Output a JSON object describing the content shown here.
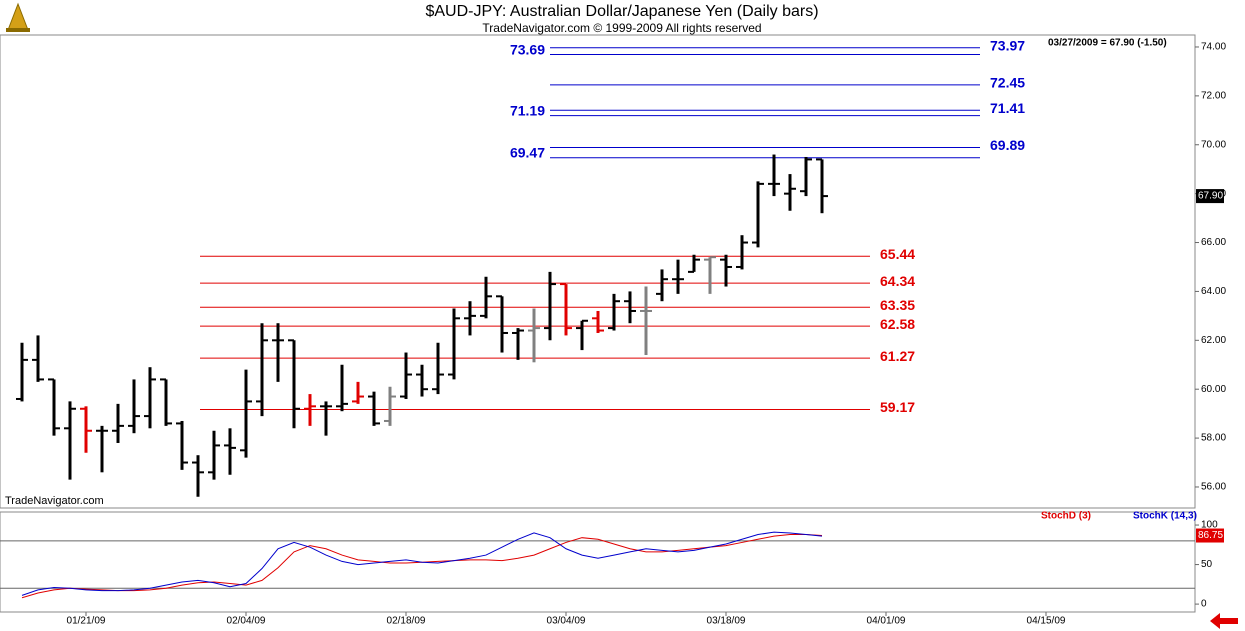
{
  "header": {
    "title": "$AUD-JPY:  Australian Dollar/Japanese Yen  (Daily bars)",
    "subtitle": "TradeNavigator.com © 1999-2009 All rights reserved",
    "info": "03/27/2009 = 67.90 (-1.50)",
    "watermark": "TradeNavigator.com"
  },
  "chart_data": [
    {
      "type": "ohlc",
      "open": [
        59.6,
        61.2,
        60.4,
        58.4,
        59.2,
        58.3,
        58.3,
        58.5,
        58.9,
        60.4,
        58.6,
        57.0,
        56.6,
        57.7,
        57.5,
        59.5,
        62.0,
        62.0,
        59.2,
        59.3,
        59.3,
        59.5,
        59.7,
        58.7,
        59.7,
        60.6,
        60.0,
        60.6,
        62.9,
        63.0,
        63.8,
        62.3,
        62.4,
        62.5,
        64.3,
        62.5,
        62.9,
        62.5,
        63.6,
        63.2,
        63.9,
        64.5,
        64.8,
        65.3,
        65.3,
        65.0,
        66.0,
        68.4,
        68.0,
        68.1,
        69.4
      ],
      "high": [
        61.9,
        62.2,
        60.4,
        59.5,
        59.3,
        58.5,
        59.4,
        60.4,
        60.9,
        60.4,
        58.7,
        57.3,
        58.3,
        58.4,
        60.8,
        62.7,
        62.7,
        62.0,
        59.8,
        59.5,
        61.0,
        60.3,
        59.9,
        60.1,
        61.5,
        61.0,
        61.9,
        63.3,
        63.6,
        64.6,
        63.8,
        62.5,
        63.3,
        64.8,
        64.3,
        62.8,
        63.2,
        63.9,
        64.0,
        64.2,
        64.9,
        65.3,
        65.5,
        65.4,
        65.5,
        66.3,
        68.5,
        69.6,
        68.8,
        69.5,
        69.4
      ],
      "low": [
        59.5,
        60.3,
        58.1,
        56.3,
        57.4,
        56.6,
        57.8,
        58.2,
        58.4,
        58.5,
        56.7,
        55.6,
        56.3,
        56.5,
        57.2,
        58.9,
        60.3,
        58.4,
        58.5,
        58.1,
        59.1,
        59.4,
        58.5,
        58.5,
        59.6,
        59.7,
        59.8,
        60.4,
        62.2,
        62.9,
        61.5,
        61.2,
        61.1,
        62.0,
        62.2,
        61.6,
        62.3,
        62.4,
        62.7,
        61.4,
        63.6,
        63.9,
        64.8,
        63.9,
        64.2,
        64.9,
        65.8,
        67.9,
        67.3,
        67.9,
        67.2
      ],
      "close": [
        61.2,
        60.4,
        58.4,
        59.2,
        58.3,
        58.3,
        58.5,
        58.9,
        60.4,
        58.6,
        57.0,
        56.6,
        57.7,
        57.6,
        59.5,
        62.0,
        62.0,
        59.2,
        59.3,
        59.3,
        59.4,
        59.7,
        58.6,
        59.7,
        60.6,
        60.0,
        60.6,
        62.9,
        63.0,
        63.8,
        62.3,
        62.4,
        62.5,
        64.3,
        62.5,
        62.8,
        62.4,
        63.6,
        63.2,
        63.2,
        64.5,
        64.5,
        65.3,
        65.4,
        65.0,
        66.0,
        68.4,
        68.4,
        68.2,
        69.4,
        67.9
      ],
      "colors": [
        "#000000",
        "#000000",
        "#000000",
        "#000000",
        "#e00000",
        "#000000",
        "#000000",
        "#000000",
        "#000000",
        "#000000",
        "#000000",
        "#000000",
        "#000000",
        "#000000",
        "#000000",
        "#000000",
        "#000000",
        "#000000",
        "#e00000",
        "#000000",
        "#000000",
        "#e00000",
        "#000000",
        "#808080",
        "#000000",
        "#000000",
        "#000000",
        "#000000",
        "#000000",
        "#000000",
        "#000000",
        "#000000",
        "#808080",
        "#000000",
        "#e00000",
        "#000000",
        "#e00000",
        "#000000",
        "#000000",
        "#808080",
        "#000000",
        "#000000",
        "#000000",
        "#808080",
        "#000000",
        "#000000",
        "#000000",
        "#000000",
        "#000000",
        "#000000",
        "#000000"
      ],
      "ylim": [
        55.14,
        74.49
      ],
      "yticks": [
        {
          "value": 56,
          "label": "56.00"
        },
        {
          "value": 58,
          "label": "58.00"
        },
        {
          "value": 60,
          "label": "60.00"
        },
        {
          "value": 62,
          "label": "62.00"
        },
        {
          "value": 64,
          "label": "64.00"
        },
        {
          "value": 66,
          "label": "66.00"
        },
        {
          "value": 68,
          "label": "68.00"
        },
        {
          "value": 70,
          "label": "70.00"
        },
        {
          "value": 72,
          "label": "72.00"
        },
        {
          "value": 74,
          "label": "74.00"
        }
      ],
      "last_price": {
        "value": 67.9,
        "label": "67.90"
      },
      "levels": [
        {
          "value": 73.97,
          "color": "#0000cc",
          "side": "right"
        },
        {
          "value": 73.69,
          "color": "#0000cc",
          "side": "left"
        },
        {
          "value": 72.45,
          "color": "#0000cc",
          "side": "right"
        },
        {
          "value": 71.41,
          "color": "#0000cc",
          "side": "right"
        },
        {
          "value": 71.19,
          "color": "#0000cc",
          "side": "left"
        },
        {
          "value": 69.89,
          "color": "#0000cc",
          "side": "right"
        },
        {
          "value": 69.47,
          "color": "#0000cc",
          "side": "left"
        },
        {
          "value": 65.44,
          "color": "#e00000",
          "side": "right"
        },
        {
          "value": 64.34,
          "color": "#e00000",
          "side": "right"
        },
        {
          "value": 63.35,
          "color": "#e00000",
          "side": "right"
        },
        {
          "value": 62.58,
          "color": "#e00000",
          "side": "right"
        },
        {
          "value": 61.27,
          "color": "#e00000",
          "side": "right"
        },
        {
          "value": 59.17,
          "color": "#e00000",
          "side": "right"
        }
      ]
    },
    {
      "type": "line",
      "categories": [
        null,
        null,
        null,
        null,
        "01/21/09",
        null,
        null,
        null,
        null,
        null,
        null,
        null,
        null,
        null,
        "02/04/09",
        null,
        null,
        null,
        null,
        null,
        null,
        null,
        null,
        null,
        "02/18/09",
        null,
        null,
        null,
        null,
        null,
        null,
        null,
        null,
        null,
        "03/04/09",
        null,
        null,
        null,
        null,
        null,
        null,
        null,
        null,
        null,
        "03/18/09",
        null,
        null,
        null,
        null,
        null,
        null,
        null,
        null,
        null,
        "04/01/09",
        null,
        null,
        null,
        null,
        null,
        null,
        null,
        null,
        null,
        "04/15/09"
      ],
      "series": [
        {
          "name": "StochD (3)",
          "color": "#e00000",
          "values": [
            8,
            14,
            18,
            20,
            19,
            18,
            17,
            17,
            18,
            20,
            24,
            27,
            28,
            26,
            24,
            30,
            46,
            66,
            74,
            70,
            62,
            56,
            54,
            52,
            52,
            53,
            54,
            55,
            56,
            56,
            55,
            58,
            62,
            70,
            78,
            84,
            82,
            76,
            70,
            66,
            66,
            68,
            70,
            72,
            74,
            78,
            82,
            86,
            88,
            88,
            86.75,
            null,
            null,
            null,
            null,
            null,
            null,
            null,
            null,
            null,
            null,
            null,
            null,
            null,
            null
          ]
        },
        {
          "name": "StochK (14,3)",
          "color": "#0000cc",
          "values": [
            11,
            18,
            21,
            20,
            18,
            17,
            17,
            18,
            20,
            24,
            28,
            30,
            27,
            22,
            26,
            45,
            70,
            78,
            72,
            62,
            54,
            50,
            52,
            54,
            56,
            53,
            52,
            55,
            58,
            62,
            72,
            82,
            90,
            84,
            70,
            62,
            58,
            62,
            66,
            70,
            68,
            66,
            68,
            72,
            76,
            82,
            88,
            91,
            90,
            88,
            86,
            null,
            null,
            null,
            null,
            null,
            null,
            null,
            null,
            null,
            null,
            null,
            null,
            null,
            null
          ]
        }
      ],
      "ylim": [
        -10,
        116.5
      ],
      "yticks": [
        0,
        50,
        100
      ],
      "hlines": [
        20,
        80
      ],
      "last_label": "86.75"
    }
  ]
}
